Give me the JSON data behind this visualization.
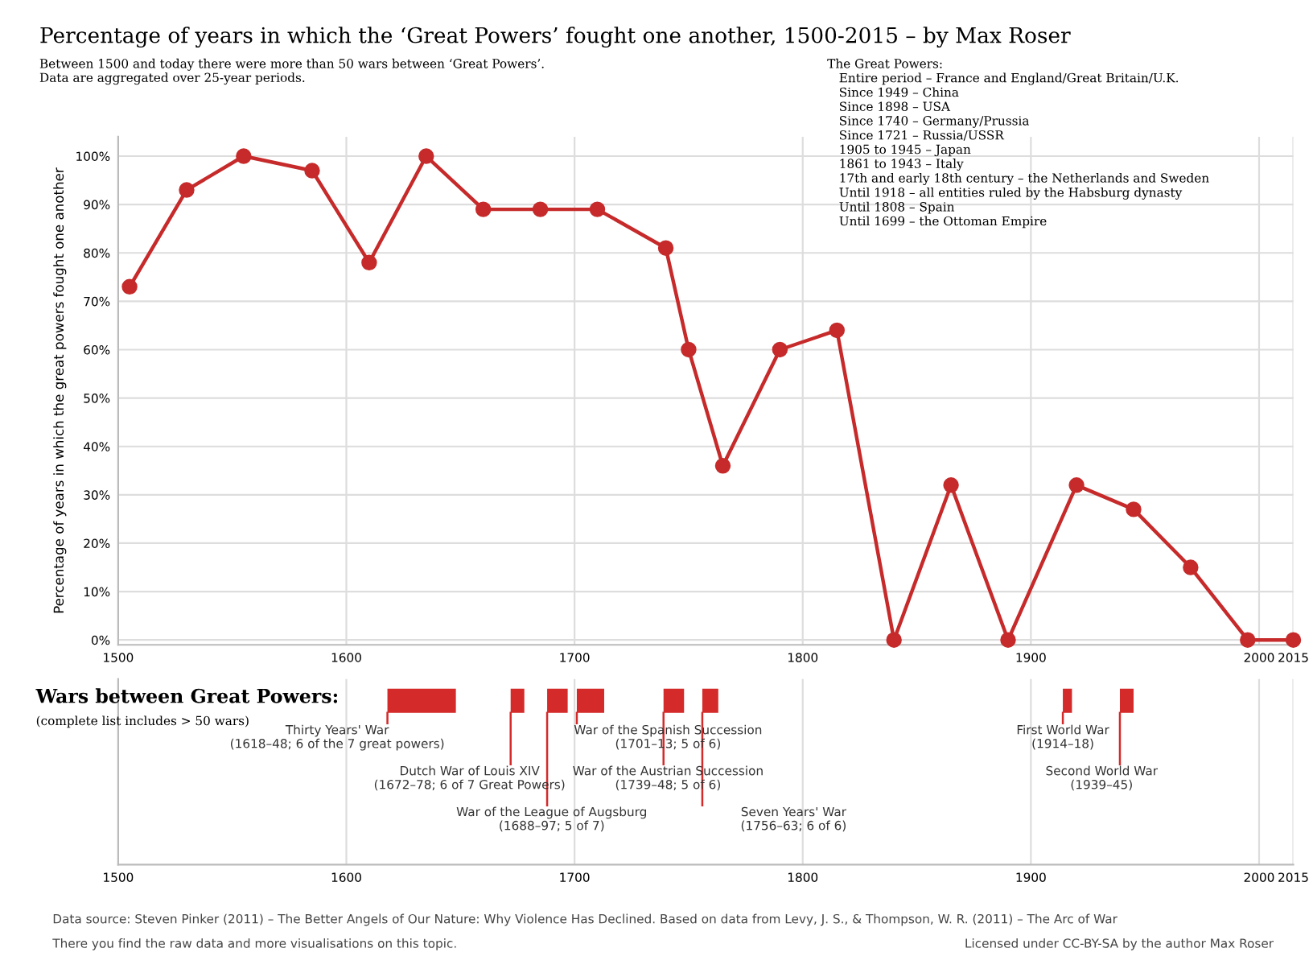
{
  "chart_data": [
    {
      "type": "line",
      "title": "Percentage of years in which the ‘Great Powers’ fought one another, 1500-2015 – by Max Roser",
      "subtitle": "Between 1500 and today there were more than 50 wars between ‘Great Powers’.\nData are aggregated over 25-year periods.",
      "ylabel": "Percentage of years in which the great powers fought one another",
      "x": [
        1505,
        1530,
        1555,
        1585,
        1610,
        1635,
        1660,
        1685,
        1710,
        1740,
        1750,
        1765,
        1790,
        1815,
        1840,
        1865,
        1890,
        1920,
        1945,
        1970,
        1995,
        2015
      ],
      "series": [
        {
          "color": "#c62a2a",
          "values": [
            73,
            93,
            100,
            97,
            78,
            100,
            89,
            89,
            89,
            81,
            60,
            36,
            60,
            64,
            0,
            32,
            0,
            32,
            27,
            15,
            0,
            0
          ]
        }
      ],
      "xlim": [
        1500,
        2015
      ],
      "xticks": [
        1500,
        1600,
        1700,
        1800,
        1900,
        2000,
        2015
      ],
      "ylim": [
        -1,
        104
      ],
      "yticks": [
        {
          "value": 0,
          "label": "0%"
        },
        {
          "value": 10,
          "label": "10%"
        },
        {
          "value": 20,
          "label": "20%"
        },
        {
          "value": 30,
          "label": "30%"
        },
        {
          "value": 40,
          "label": "40%"
        },
        {
          "value": 50,
          "label": "50%"
        },
        {
          "value": 60,
          "label": "60%"
        },
        {
          "value": 70,
          "label": "70%"
        },
        {
          "value": 80,
          "label": "80%"
        },
        {
          "value": 90,
          "label": "90%"
        },
        {
          "value": 100,
          "label": "100%"
        }
      ],
      "grid": true,
      "marker": "circle",
      "line_style": "solid",
      "annotations": [
        "The Great Powers:\n   Entire period – France and England/Great Britain/U.K.\n   Since 1949 – China\n   Since 1898 – USA\n   Since 1740 – Germany/Prussia\n   Since 1721 – Russia/USSR\n   1905 to 1945 – Japan\n   1861 to 1943 – Italy\n   17th and early 18th century – the Netherlands and Sweden\n   Until 1918 – all entities ruled by the Habsburg dynasty\n   Until 1808 – Spain\n   Until 1699 – the Ottoman Empire"
      ]
    },
    {
      "type": "bar",
      "orientation": "horizontal",
      "title": "Wars between Great Powers:",
      "subtitle": "(complete list includes > 50 wars)",
      "categories": [
        null
      ],
      "series": [
        {
          "color": "#d42a2a",
          "values": [
            30
          ],
          "base": [
            1618
          ]
        },
        {
          "color": "#d42a2a",
          "values": [
            6
          ],
          "base": [
            1672
          ]
        },
        {
          "color": "#d42a2a",
          "values": [
            9
          ],
          "base": [
            1688
          ]
        },
        {
          "color": "#d42a2a",
          "values": [
            12
          ],
          "base": [
            1701
          ]
        },
        {
          "color": "#d42a2a",
          "values": [
            9
          ],
          "base": [
            1739
          ]
        },
        {
          "color": "#d42a2a",
          "values": [
            7
          ],
          "base": [
            1756
          ]
        },
        {
          "color": "#d42a2a",
          "values": [
            4
          ],
          "base": [
            1914
          ]
        },
        {
          "color": "#d42a2a",
          "values": [
            6
          ],
          "base": [
            1939
          ]
        }
      ],
      "xlim": [
        1500,
        2015
      ],
      "xticks": [
        1500,
        1600,
        1700,
        1800,
        1900,
        2000,
        2015
      ],
      "grid": "x",
      "tick_labels": "x",
      "annotations": [
        "Thirty Years' War\n(1618–48; 6 of the 7 great powers)",
        "Dutch War of Louis XIV\n(1672–78; 6 of 7 Great Powers)",
        "War of the League of Augsburg\n(1688–97; 5 of 7)",
        "War of the Spanish Succession\n(1701–13; 5 of 6)",
        "War of the Austrian Succession\n(1739–48; 5 of 6)",
        "Seven Years' War\n(1756–63; 6 of 6)",
        "First World War\n(1914–18)",
        "Second World War\n(1939–45)",
        "Data source: Steven Pinker (2011) – The Better Angels of Our Nature: Why Violence Has Declined. Based on data from Levy, J. S., & Thompson, W. R. (2011) – The Arc of War",
        "There you find the raw data and more visualisations on this topic.",
        "Licensed under CC-BY-SA by the author Max Roser"
      ]
    }
  ]
}
